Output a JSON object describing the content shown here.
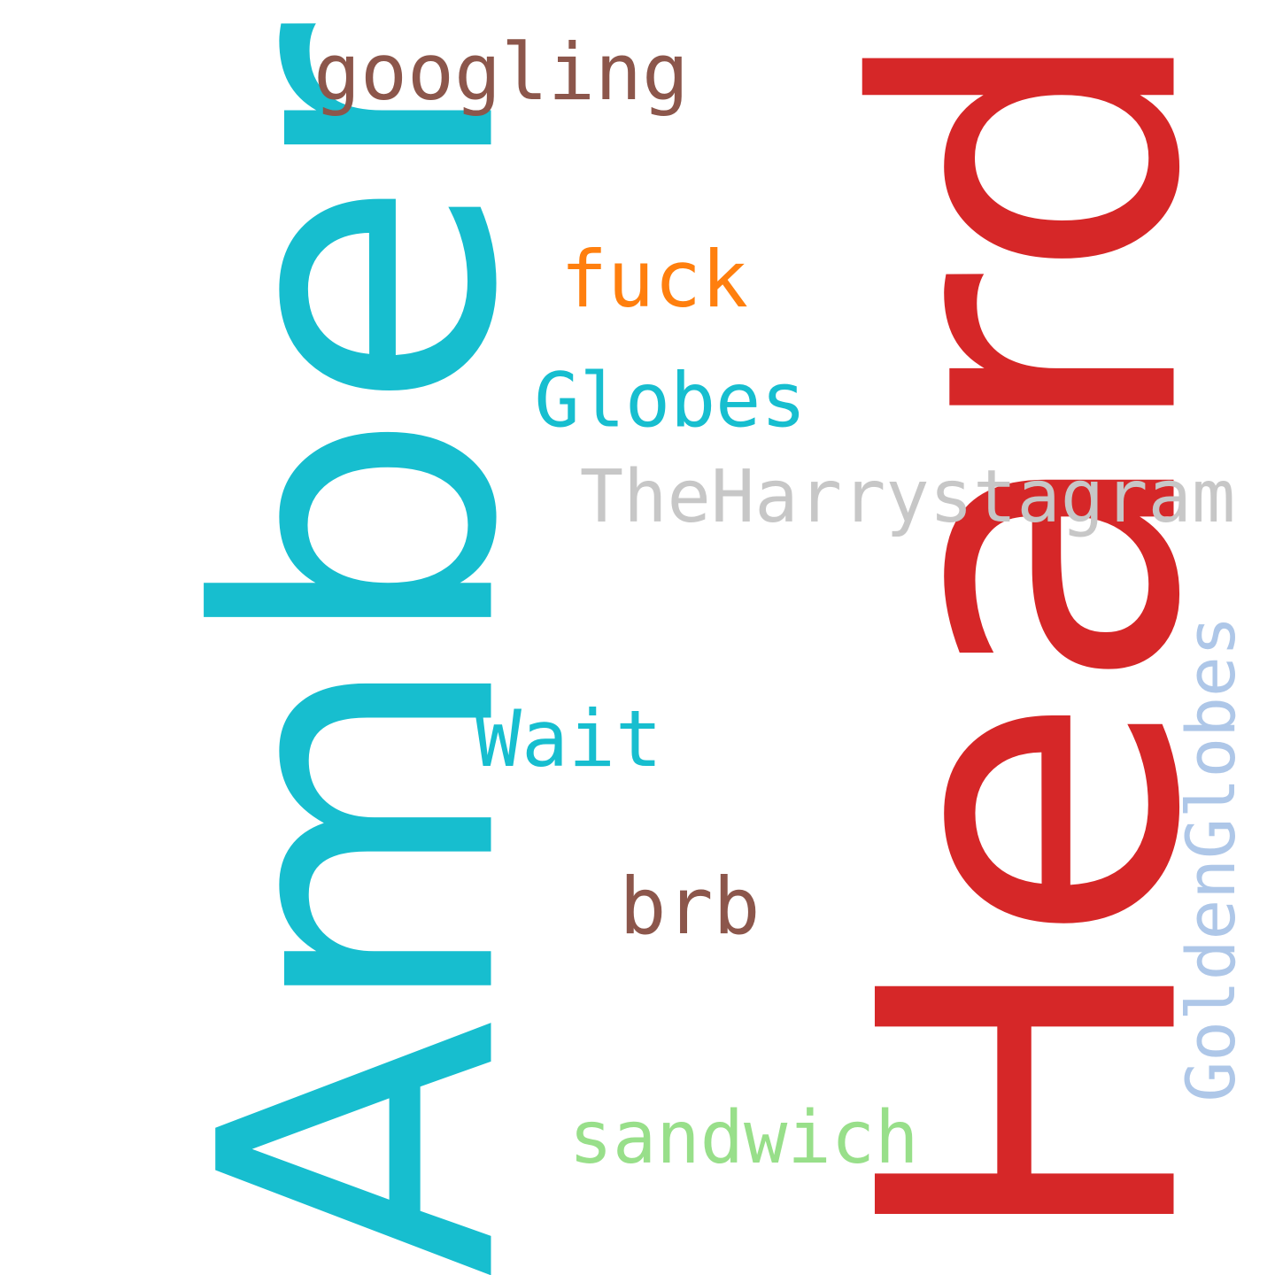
{
  "words": [
    {
      "text": "Amber",
      "color": "#17becf",
      "orientation": "vertical"
    },
    {
      "text": "Heard",
      "color": "#d62728",
      "orientation": "vertical"
    },
    {
      "text": "googling",
      "color": "#8c564b",
      "orientation": "horizontal"
    },
    {
      "text": "fuck",
      "color": "#ff7f0e",
      "orientation": "horizontal"
    },
    {
      "text": "Globes",
      "color": "#17becf",
      "orientation": "horizontal"
    },
    {
      "text": "TheHarrystagram",
      "color": "#c7c7c7",
      "orientation": "horizontal"
    },
    {
      "text": "GoldenGlobes",
      "color": "#aec7e8",
      "orientation": "vertical"
    },
    {
      "text": "Wait",
      "color": "#17becf",
      "orientation": "horizontal"
    },
    {
      "text": "brb",
      "color": "#8c564b",
      "orientation": "horizontal"
    },
    {
      "text": "sandwich",
      "color": "#98df8a",
      "orientation": "horizontal"
    }
  ]
}
